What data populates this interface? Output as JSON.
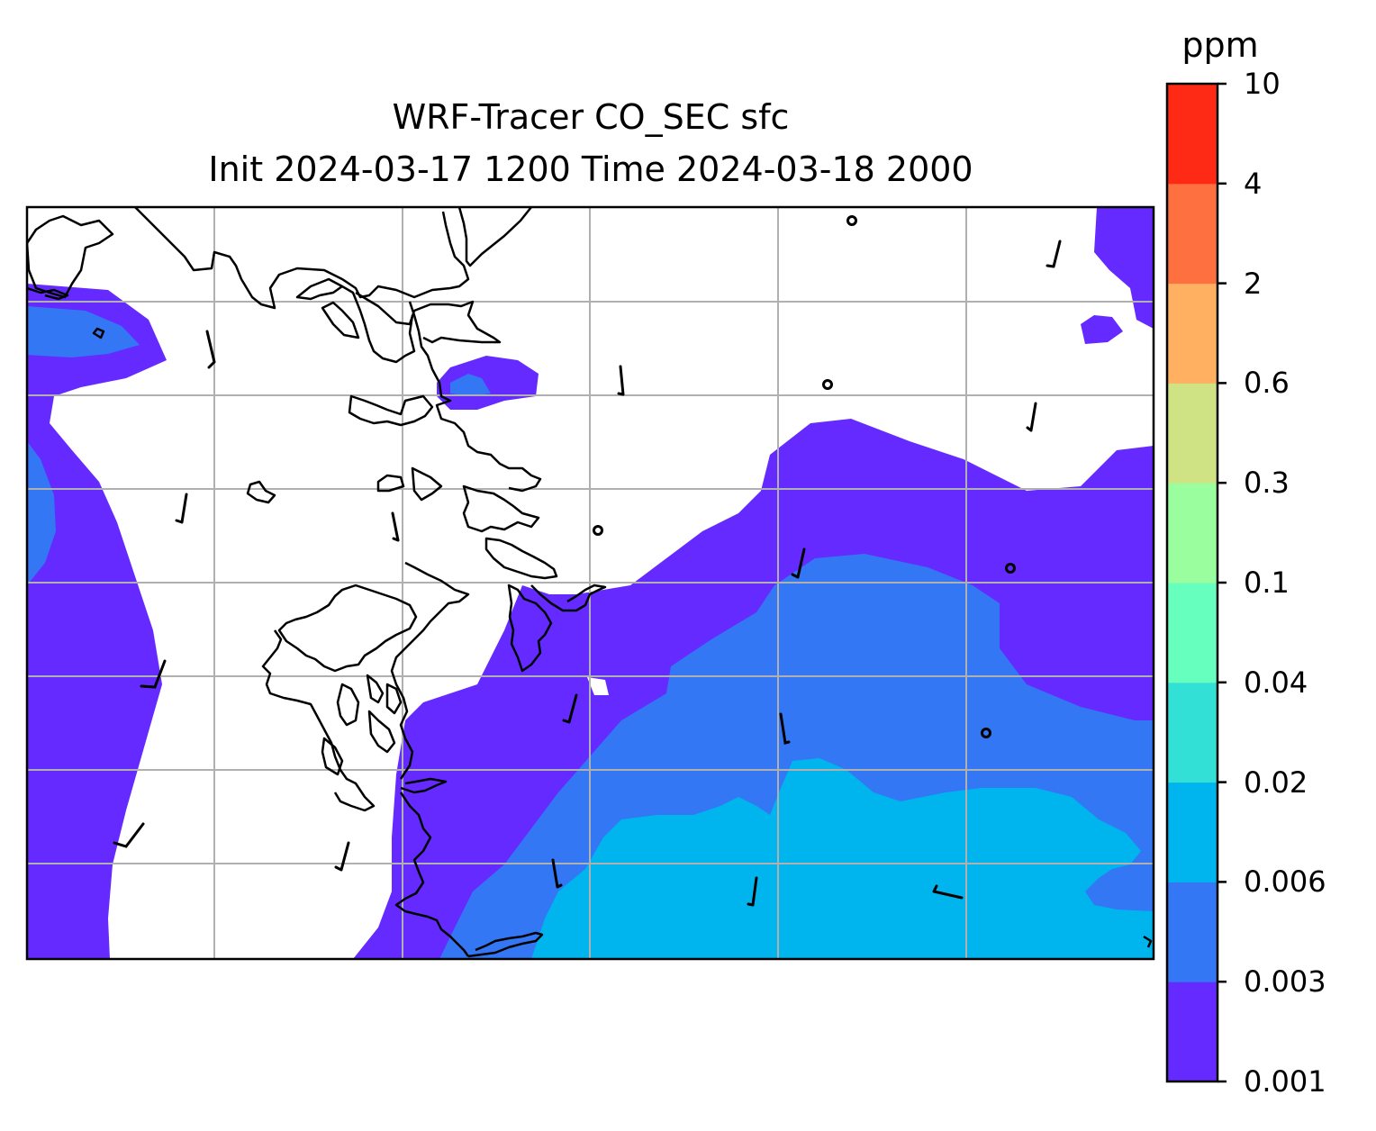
{
  "map": {
    "title_line1": "WRF-Tracer CO_SEC sfc",
    "title_line2": "Init 2024-03-17 1200 Time 2024-03-18 2000",
    "variable": "CO_SEC",
    "level": "sfc",
    "init_time": "2024-03-17 1200",
    "valid_time": "2024-03-18 2000",
    "overlays": [
      "coastlines",
      "lat-lon gridlines",
      "wind barbs",
      "calm-wind circles"
    ]
  },
  "colorbar": {
    "title": "ppm",
    "ticks": [
      "10",
      "4",
      "2",
      "0.6",
      "0.3",
      "0.1",
      "0.04",
      "0.02",
      "0.006",
      "0.003",
      "0.001"
    ],
    "bands_low_to_high": [
      {
        "range": "0.001-0.003",
        "color": "#652aff"
      },
      {
        "range": "0.003-0.006",
        "color": "#3377f4"
      },
      {
        "range": "0.006-0.02",
        "color": "#00b5ee"
      },
      {
        "range": "0.02-0.04",
        "color": "#33e0d5"
      },
      {
        "range": "0.04-0.1",
        "color": "#66ffbe"
      },
      {
        "range": "0.1-0.3",
        "color": "#9afe9e"
      },
      {
        "range": "0.3-0.6",
        "color": "#cfe385"
      },
      {
        "range": "0.6-2",
        "color": "#ffb060"
      },
      {
        "range": "2-4",
        "color": "#ff7040"
      },
      {
        "range": "4-10",
        "color": "#ff2a15"
      }
    ]
  },
  "colors": {
    "gridline": "#b0b0b0",
    "coastline": "#000000",
    "frame": "#000000",
    "background": "#ffffff"
  }
}
